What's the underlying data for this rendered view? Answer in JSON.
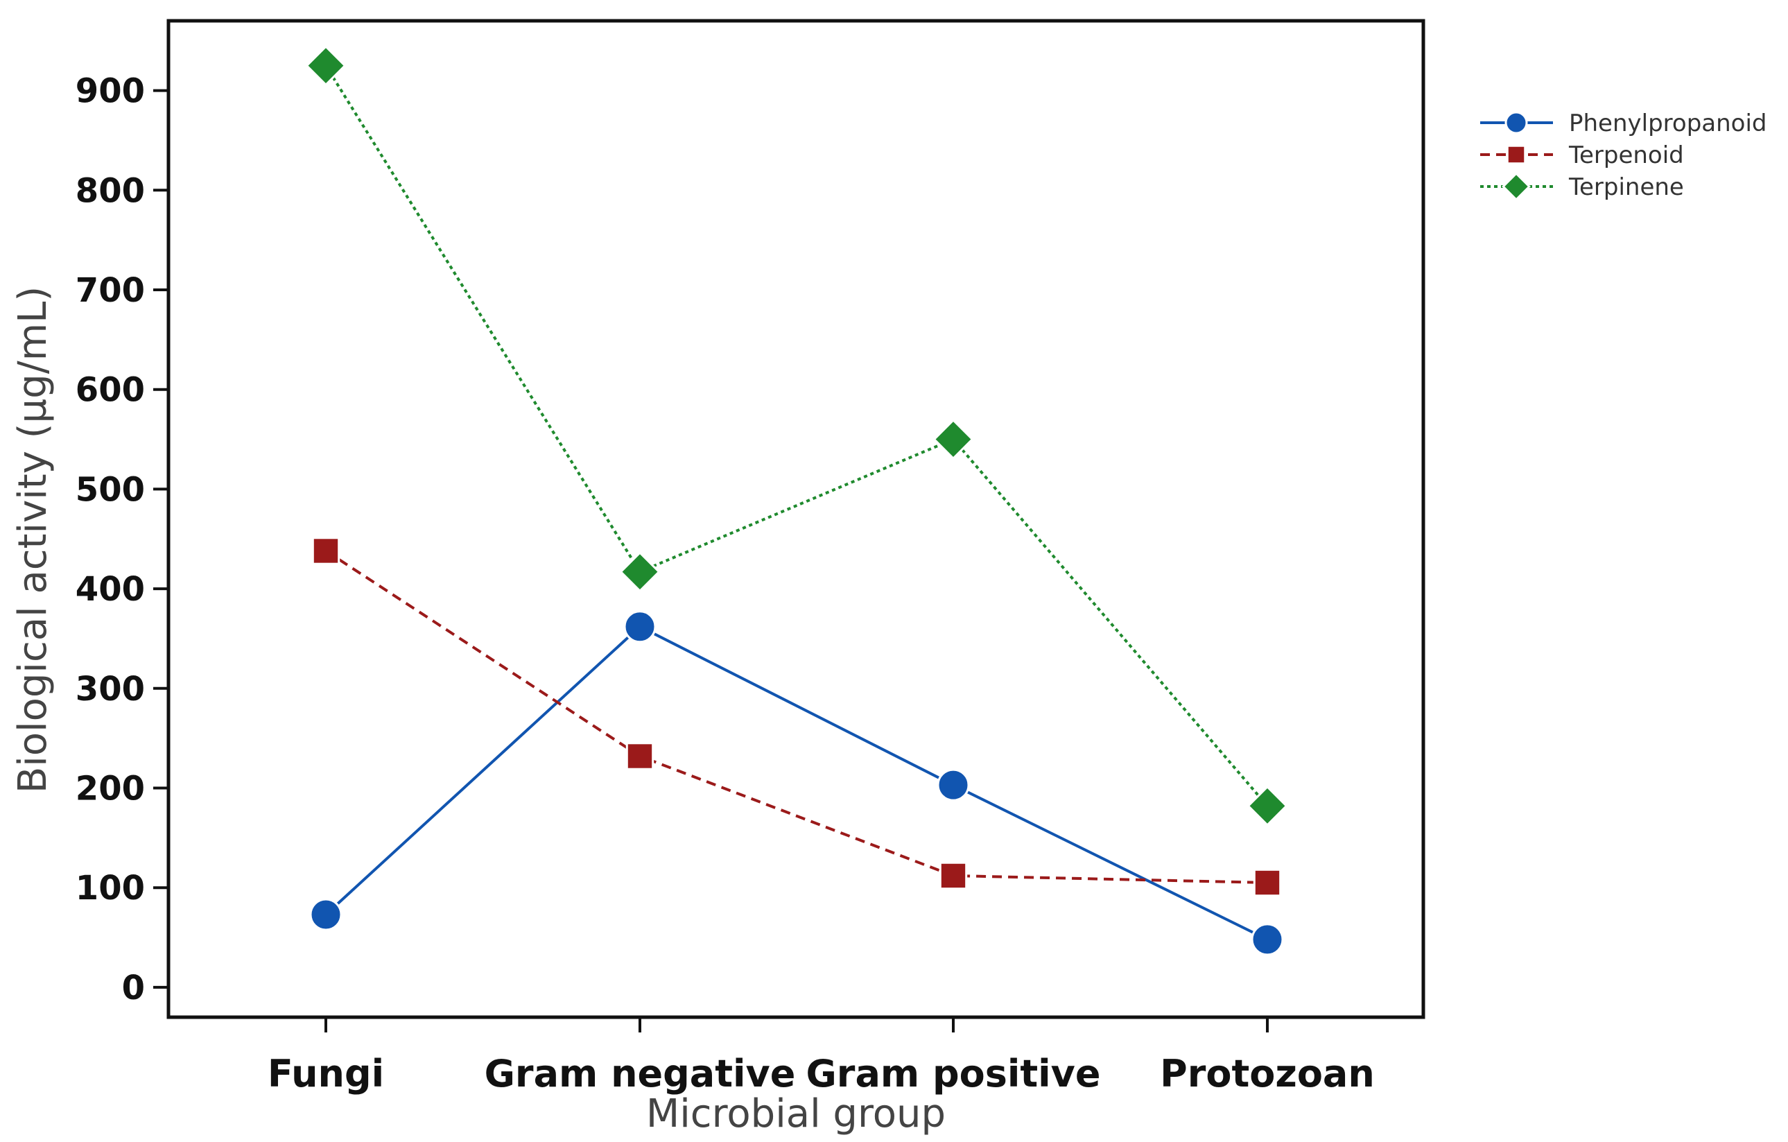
{
  "chart_data": {
    "type": "line",
    "title": "",
    "xlabel": "Microbial group",
    "ylabel": "Biological activity (µg/mL)",
    "categories": [
      "Fungi",
      "Gram negative",
      "Gram positive",
      "Protozoan"
    ],
    "ylim": [
      -30,
      970
    ],
    "yticks": [
      0,
      100,
      200,
      300,
      400,
      500,
      600,
      700,
      800,
      900
    ],
    "grid": false,
    "legend_position": "top-right, outside plot area",
    "series": [
      {
        "name": "Phenylpropanoid",
        "values": [
          73,
          362,
          203,
          48
        ],
        "color": "#1155b0",
        "marker": "circle",
        "line_style": "solid"
      },
      {
        "name": "Terpenoid",
        "values": [
          438,
          232,
          112,
          105
        ],
        "color": "#9b1a1a",
        "marker": "square",
        "line_style": "dashed"
      },
      {
        "name": "Terpinene",
        "values": [
          925,
          417,
          550,
          182
        ],
        "color": "#1f8a2e",
        "marker": "diamond",
        "line_style": "dotted"
      }
    ]
  }
}
